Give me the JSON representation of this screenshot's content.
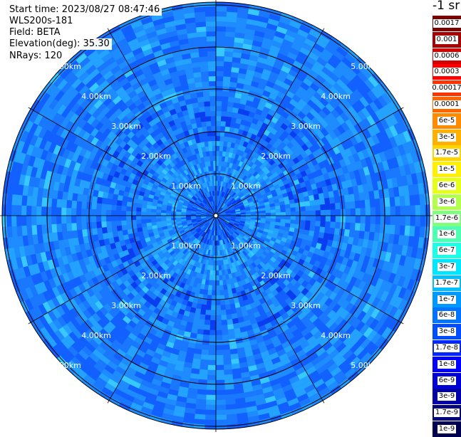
{
  "header": {
    "start_time": "Start time: 2023/08/27 08:47:46",
    "instrument": "WLS200s-181",
    "field": "Field: BETA",
    "elevation": "Elevation(deg): 35.30",
    "nrays": "NRays: 120"
  },
  "range_labels": [
    "1.00km",
    "2.00km",
    "3.00km",
    "4.00km",
    "5.00km"
  ],
  "legend": {
    "unit": "-1 sr",
    "entries": [
      {
        "label": "0.0017",
        "color": "#7a0000"
      },
      {
        "label": "0.001",
        "color": "#a80000"
      },
      {
        "label": "0.0006",
        "color": "#d40000"
      },
      {
        "label": "0.0003",
        "color": "#ff0000"
      },
      {
        "label": "0.00017",
        "color": "#ff3300"
      },
      {
        "label": "0.0001",
        "color": "#ff6600"
      },
      {
        "label": "6e-5",
        "color": "#ff8c00"
      },
      {
        "label": "3e-5",
        "color": "#ffb000"
      },
      {
        "label": "1.7e-5",
        "color": "#ffd400"
      },
      {
        "label": "1e-5",
        "color": "#fff000"
      },
      {
        "label": "6e-6",
        "color": "#e6ff1a"
      },
      {
        "label": "3e-6",
        "color": "#b3ff4d"
      },
      {
        "label": "1.7e-6",
        "color": "#80ff80"
      },
      {
        "label": "1e-6",
        "color": "#4dffb3"
      },
      {
        "label": "6e-7",
        "color": "#1affe6"
      },
      {
        "label": "3e-7",
        "color": "#00e6ff"
      },
      {
        "label": "1.7e-7",
        "color": "#00bfff"
      },
      {
        "label": "1e-7",
        "color": "#0099ff"
      },
      {
        "label": "6e-8",
        "color": "#0073ff"
      },
      {
        "label": "3e-8",
        "color": "#004dff"
      },
      {
        "label": "1.7e-8",
        "color": "#0026ff"
      },
      {
        "label": "1e-8",
        "color": "#0000ff"
      },
      {
        "label": "6e-9",
        "color": "#0000d4"
      },
      {
        "label": "3e-9",
        "color": "#0000a8"
      },
      {
        "label": "1.7e-9",
        "color": "#00007a"
      },
      {
        "label": "1e-9",
        "color": "#000050"
      }
    ]
  }
}
